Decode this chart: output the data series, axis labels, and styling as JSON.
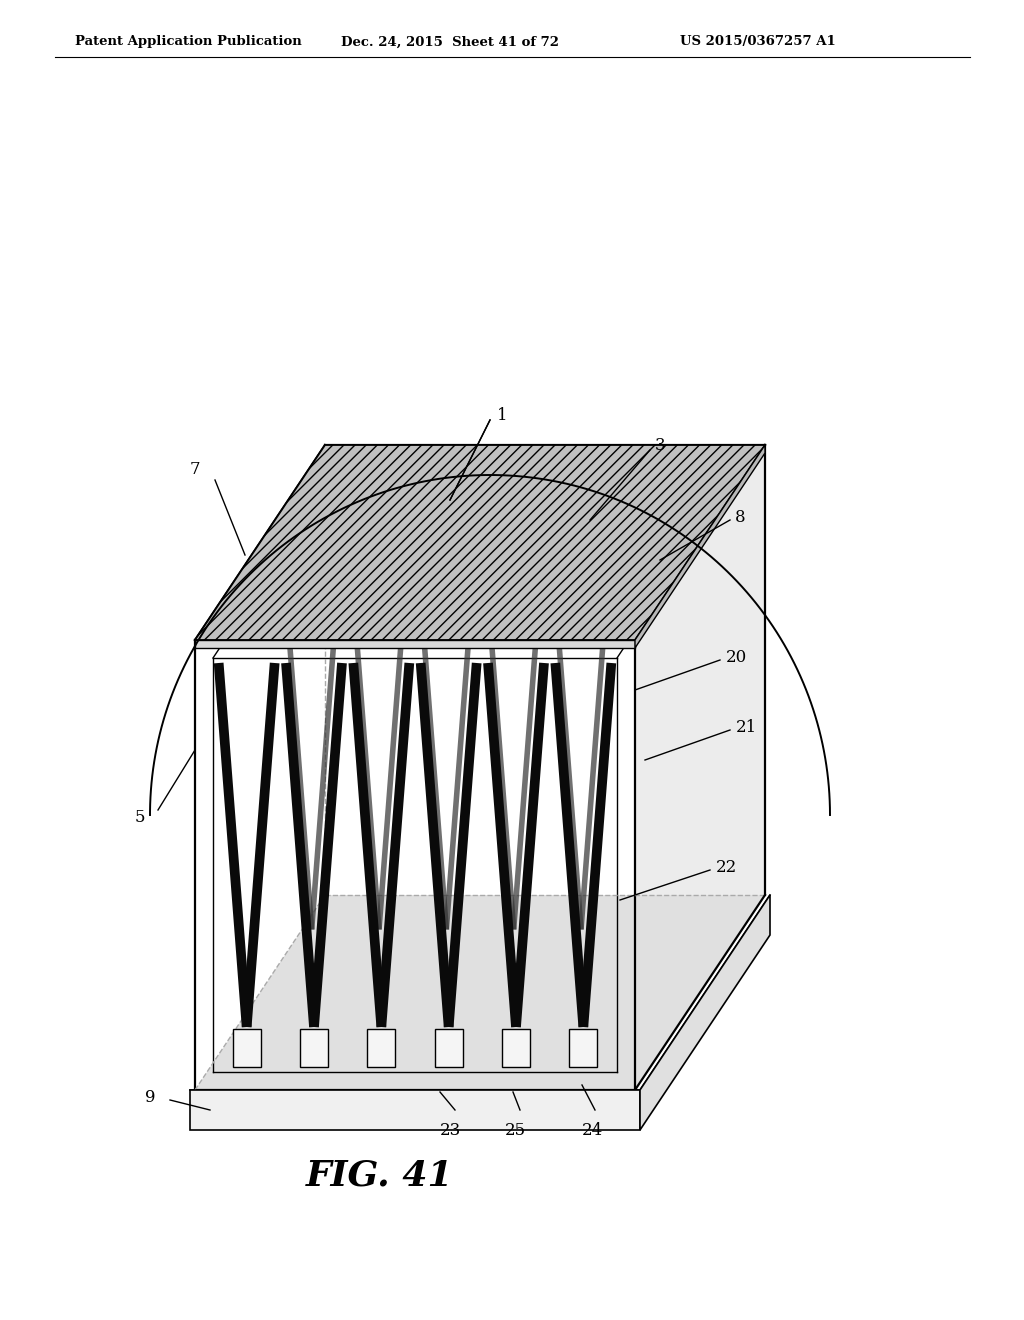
{
  "header_left": "Patent Application Publication",
  "header_mid": "Dec. 24, 2015  Sheet 41 of 72",
  "header_right": "US 2015/0367257 A1",
  "figure_label": "FIG. 41",
  "bg": "#ffffff",
  "lc": "#000000",
  "box_face_color": "#f5f5f5",
  "box_side_color": "#e0e0e0",
  "mem_top_color": "#b8b8b8",
  "mem_front_color": "#d8d8d8",
  "mem_right_color": "#c8c8c8",
  "fin_color": "#111111",
  "post_color": "#f0f0f0"
}
